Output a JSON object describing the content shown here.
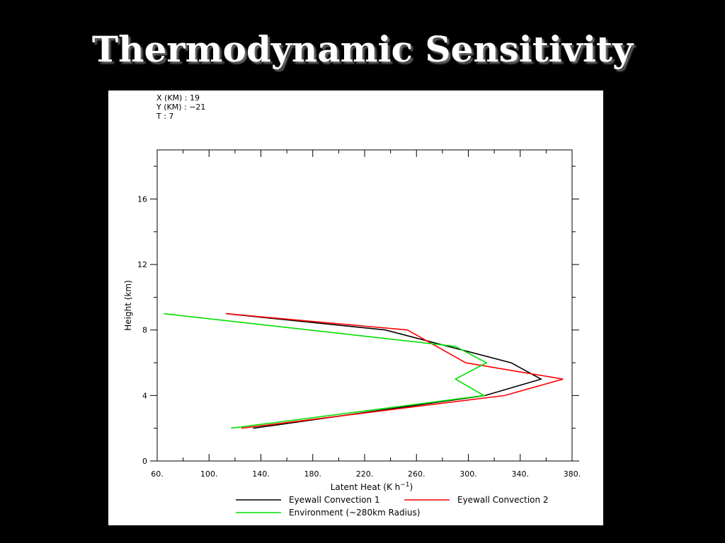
{
  "slide": {
    "title": "Thermodynamic Sensitivity"
  },
  "plot_info": {
    "lines": [
      "X (KM) : 19",
      "Y (KM) : −21",
      "T : 7"
    ]
  },
  "chart_data": {
    "type": "line",
    "xlabel": "Latent Heat (K h",
    "xlabel_sup": "−1",
    "xlabel_close": ")",
    "ylabel": "Height (km)",
    "xlim": [
      60,
      380
    ],
    "ylim": [
      0,
      19
    ],
    "x_ticks": [
      60,
      100,
      140,
      180,
      220,
      260,
      300,
      340,
      380
    ],
    "x_tick_labels": [
      "60.",
      "100.",
      "140.",
      "180.",
      "220.",
      "260.",
      "300.",
      "340.",
      "380."
    ],
    "y_ticks": [
      0,
      4,
      8,
      12,
      16
    ],
    "y_tick_labels": [
      "0",
      "4",
      "8",
      "12",
      "16"
    ],
    "grid": false,
    "legend_position": "bottom",
    "series": [
      {
        "name": "Eyewall Convection 1",
        "color": "#000000",
        "x": [
          134,
          313,
          356,
          333,
          236,
          113
        ],
        "y": [
          2,
          4,
          5,
          6,
          8,
          9
        ]
      },
      {
        "name": "Eyewall Convection 2",
        "color": "#ff0000",
        "x": [
          125,
          328,
          373,
          298,
          253,
          113
        ],
        "y": [
          2,
          4,
          5,
          6,
          8,
          9
        ]
      },
      {
        "name": "Environment (~280km Radius)",
        "color": "#00e000",
        "x": [
          117,
          312,
          290,
          314,
          290,
          65
        ],
        "y": [
          2,
          4,
          5,
          6,
          7,
          9
        ]
      }
    ]
  }
}
